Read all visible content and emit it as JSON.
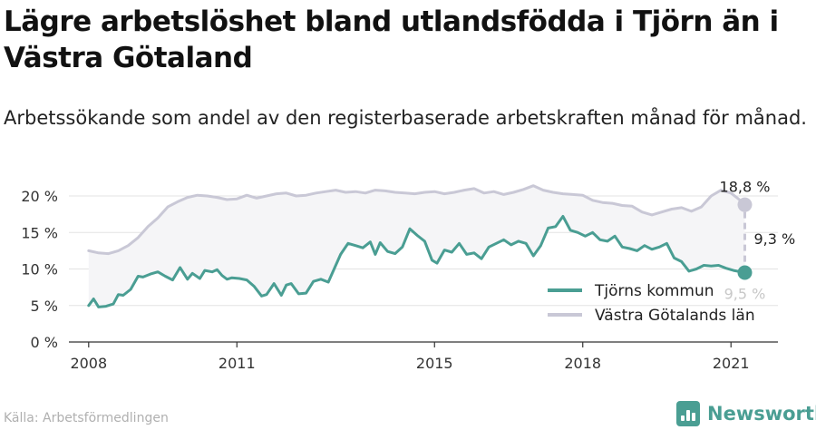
{
  "title": "Lägre arbetslöshet bland utlandsfödda i Tjörn än i Västra Götaland",
  "subtitle": "Arbetssökande som andel av den registerbaserade arbetskraften månad för månad.",
  "source": "Källa: Arbetsförmedlingen",
  "brand": "Newsworthy",
  "colors": {
    "tjorn": "#4a9e93",
    "vg": "#c9c8d6",
    "fill": "#f5f5f7",
    "grid": "#e3e3e3",
    "axis": "#333333"
  },
  "chart_data": {
    "type": "line",
    "x_unit": "year",
    "y_ticks": [
      "0 %",
      "5 %",
      "10 %",
      "15 %",
      "20 %"
    ],
    "y_tick_values": [
      0,
      5,
      10,
      15,
      20
    ],
    "x_ticks": [
      "2008",
      "2011",
      "2015",
      "2018",
      "2021"
    ],
    "x_tick_values": [
      2008,
      2011,
      2015,
      2018,
      2021
    ],
    "ylim": [
      0,
      20
    ],
    "xlim": [
      2007.6,
      2021.95
    ],
    "grid": true,
    "legend_position": "bottom-right",
    "annotations": {
      "vg_last": "18,8 %",
      "tjorn_last": "9,5 %",
      "gap": "9,3 %"
    },
    "series": [
      {
        "name": "Tjörns kommun",
        "x": [
          2008.0,
          2008.1,
          2008.2,
          2008.35,
          2008.5,
          2008.6,
          2008.7,
          2008.85,
          2009.0,
          2009.1,
          2009.25,
          2009.4,
          2009.55,
          2009.7,
          2009.85,
          2010.0,
          2010.1,
          2010.25,
          2010.35,
          2010.5,
          2010.6,
          2010.7,
          2010.8,
          2010.9,
          2011.05,
          2011.2,
          2011.35,
          2011.5,
          2011.6,
          2011.75,
          2011.9,
          2012.0,
          2012.1,
          2012.25,
          2012.4,
          2012.55,
          2012.7,
          2012.85,
          2013.0,
          2013.1,
          2013.25,
          2013.4,
          2013.55,
          2013.7,
          2013.8,
          2013.9,
          2014.05,
          2014.2,
          2014.35,
          2014.5,
          2014.65,
          2014.8,
          2014.95,
          2015.05,
          2015.2,
          2015.35,
          2015.5,
          2015.65,
          2015.8,
          2015.95,
          2016.1,
          2016.25,
          2016.4,
          2016.55,
          2016.7,
          2016.85,
          2017.0,
          2017.15,
          2017.3,
          2017.45,
          2017.6,
          2017.75,
          2017.9,
          2018.05,
          2018.2,
          2018.35,
          2018.5,
          2018.65,
          2018.8,
          2018.95,
          2019.1,
          2019.25,
          2019.4,
          2019.55,
          2019.7,
          2019.85,
          2020.0,
          2020.15,
          2020.3,
          2020.45,
          2020.6,
          2020.75,
          2020.9,
          2021.05,
          2021.2,
          2021.28
        ],
        "values": [
          5.0,
          5.9,
          4.8,
          4.9,
          5.2,
          6.5,
          6.4,
          7.2,
          9.0,
          8.9,
          9.3,
          9.6,
          9.0,
          8.5,
          10.2,
          8.6,
          9.4,
          8.7,
          9.8,
          9.6,
          9.9,
          9.1,
          8.6,
          8.8,
          8.7,
          8.5,
          7.6,
          6.3,
          6.5,
          8.0,
          6.4,
          7.8,
          8.0,
          6.6,
          6.7,
          8.3,
          8.6,
          8.2,
          10.5,
          12.0,
          13.5,
          13.2,
          12.9,
          13.7,
          12.0,
          13.6,
          12.4,
          12.1,
          13.0,
          15.5,
          14.6,
          13.8,
          11.2,
          10.8,
          12.6,
          12.3,
          13.5,
          12.0,
          12.2,
          11.4,
          13.0,
          13.5,
          14.0,
          13.3,
          13.8,
          13.5,
          11.8,
          13.2,
          15.6,
          15.8,
          17.2,
          15.3,
          15.0,
          14.5,
          15.0,
          14.0,
          13.8,
          14.5,
          13.0,
          12.8,
          12.5,
          13.2,
          12.7,
          13.0,
          13.5,
          11.5,
          11.0,
          9.7,
          10.0,
          10.5,
          10.4,
          10.5,
          10.1,
          9.8,
          9.6,
          9.5
        ]
      },
      {
        "name": "Västra Götalands län",
        "x": [
          2008.0,
          2008.2,
          2008.4,
          2008.6,
          2008.8,
          2009.0,
          2009.2,
          2009.4,
          2009.6,
          2009.8,
          2010.0,
          2010.2,
          2010.4,
          2010.6,
          2010.8,
          2011.0,
          2011.2,
          2011.4,
          2011.6,
          2011.8,
          2012.0,
          2012.2,
          2012.4,
          2012.6,
          2012.8,
          2013.0,
          2013.2,
          2013.4,
          2013.6,
          2013.8,
          2014.0,
          2014.2,
          2014.4,
          2014.6,
          2014.8,
          2015.0,
          2015.2,
          2015.4,
          2015.6,
          2015.8,
          2016.0,
          2016.2,
          2016.4,
          2016.6,
          2016.8,
          2017.0,
          2017.2,
          2017.4,
          2017.6,
          2017.8,
          2018.0,
          2018.2,
          2018.4,
          2018.6,
          2018.8,
          2019.0,
          2019.2,
          2019.4,
          2019.6,
          2019.8,
          2020.0,
          2020.2,
          2020.4,
          2020.6,
          2020.8,
          2021.0,
          2021.15,
          2021.28
        ],
        "values": [
          12.5,
          12.2,
          12.1,
          12.5,
          13.2,
          14.3,
          15.8,
          17.0,
          18.5,
          19.2,
          19.8,
          20.1,
          20.0,
          19.8,
          19.5,
          19.6,
          20.1,
          19.7,
          20.0,
          20.3,
          20.4,
          20.0,
          20.1,
          20.4,
          20.6,
          20.8,
          20.5,
          20.6,
          20.4,
          20.8,
          20.7,
          20.5,
          20.4,
          20.3,
          20.5,
          20.6,
          20.3,
          20.5,
          20.8,
          21.0,
          20.4,
          20.6,
          20.2,
          20.5,
          20.9,
          21.4,
          20.8,
          20.5,
          20.3,
          20.2,
          20.1,
          19.4,
          19.1,
          19.0,
          18.7,
          18.6,
          17.8,
          17.4,
          17.8,
          18.2,
          18.4,
          17.9,
          18.5,
          20.0,
          20.8,
          20.4,
          19.6,
          18.8
        ]
      }
    ]
  }
}
